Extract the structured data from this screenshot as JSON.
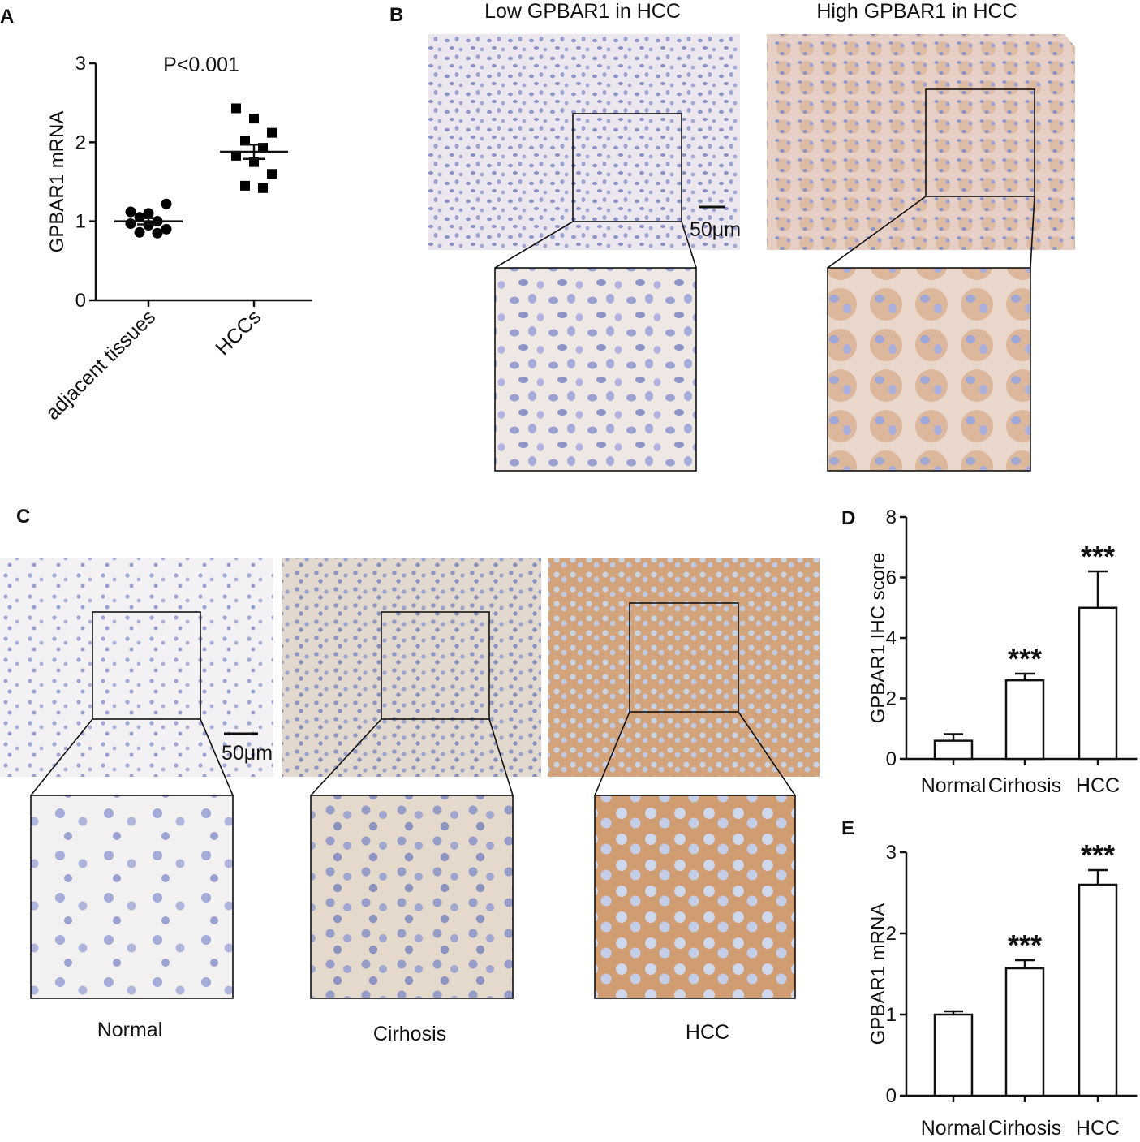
{
  "panel_labels": [
    "A",
    "B",
    "C",
    "D",
    "E"
  ],
  "micrographs": {
    "B": {
      "titles": [
        "Low GPBAR1 in HCC",
        "High GPBAR1 in HCC"
      ],
      "scale_bar": "50μm"
    },
    "C": {
      "captions": [
        "Normal",
        "Cirhosis",
        "HCC"
      ],
      "scale_bar": "50μm"
    }
  },
  "chart_data": [
    {
      "type": "dot",
      "ylabel": "GPBAR1 mRNA",
      "annotation": "P<0.001",
      "categories": [
        "adjacent tissues",
        "HCCs"
      ],
      "points": [
        [
          1.12,
          1.1,
          1.22,
          1.05,
          1.0,
          0.97,
          0.95,
          0.9,
          0.86,
          0.85
        ],
        [
          2.43,
          2.3,
          2.12,
          2.02,
          1.93,
          1.83,
          1.75,
          1.6,
          1.45,
          1.42
        ]
      ],
      "means": [
        1.0,
        1.88
      ],
      "errors": [
        0.04,
        0.09
      ],
      "markers": [
        "circle",
        "square"
      ],
      "color": "#000000",
      "ylim": [
        0,
        3
      ],
      "yticks": [
        0,
        1,
        2,
        3
      ]
    },
    {
      "type": "bar",
      "ylabel": "GPBAR1 IHC score",
      "categories": [
        "Normal",
        "Cirhosis",
        "HCC"
      ],
      "values": [
        0.6,
        2.6,
        5.0
      ],
      "errors": [
        0.22,
        0.22,
        1.2
      ],
      "significance": [
        null,
        "***",
        "***"
      ],
      "color": "#ffffff",
      "ylim": [
        0,
        8
      ],
      "yticks": [
        0,
        2,
        4,
        6,
        8
      ]
    },
    {
      "type": "bar",
      "ylabel": "GPBAR1 mRNA",
      "categories": [
        "Normal",
        "Cirhosis",
        "HCC"
      ],
      "values": [
        1.0,
        1.57,
        2.6
      ],
      "errors": [
        0.04,
        0.1,
        0.18
      ],
      "significance": [
        null,
        "***",
        "***"
      ],
      "color": "#ffffff",
      "ylim": [
        0,
        3
      ],
      "yticks": [
        0,
        1,
        2,
        3
      ]
    }
  ]
}
